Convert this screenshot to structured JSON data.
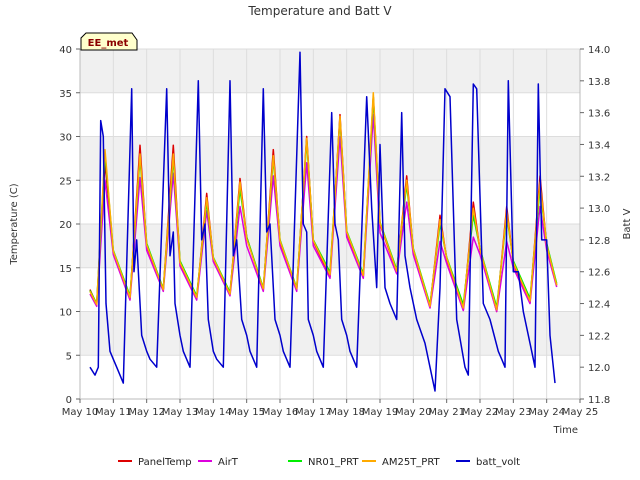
{
  "chart_data": {
    "type": "line",
    "title": "Temperature and Batt V",
    "xlabel": "Time",
    "ylabel": "Temperature (C)",
    "y2label": "Batt V",
    "badge": "EE_met",
    "xlim": [
      10,
      25
    ],
    "ylim": [
      0,
      40
    ],
    "y2lim": [
      11.8,
      14.0
    ],
    "x_ticks": [
      10,
      11,
      12,
      13,
      14,
      15,
      16,
      17,
      18,
      19,
      20,
      21,
      22,
      23,
      24,
      25
    ],
    "x_tick_labels": [
      "May 10",
      "May 11",
      "May 12",
      "May 13",
      "May 14",
      "May 15",
      "May 16",
      "May 17",
      "May 18",
      "May 19",
      "May 20",
      "May 21",
      "May 22",
      "May 23",
      "May 24",
      "May 25"
    ],
    "y_ticks": [
      0,
      5,
      10,
      15,
      20,
      25,
      30,
      35,
      40
    ],
    "y2_ticks": [
      11.8,
      12.0,
      12.2,
      12.4,
      12.6,
      12.8,
      13.0,
      13.2,
      13.4,
      13.6,
      13.8,
      14.0
    ],
    "y2_tick_labels": [
      "11.8",
      "12.0",
      "12.2",
      "12.4",
      "12.6",
      "12.8",
      "13.0",
      "13.2",
      "13.4",
      "13.6",
      "13.8",
      "14.0"
    ],
    "grid": true,
    "legend_position": "bottom",
    "temp_x": [
      10.3,
      10.5,
      10.75,
      11.0,
      11.5,
      11.8,
      12.0,
      12.5,
      12.8,
      13.0,
      13.5,
      13.8,
      14.0,
      14.5,
      14.8,
      15.0,
      15.5,
      15.8,
      16.0,
      16.5,
      16.8,
      17.0,
      17.5,
      17.8,
      18.0,
      18.5,
      18.8,
      19.0,
      19.5,
      19.8,
      20.0,
      20.5,
      20.8,
      21.0,
      21.5,
      21.8,
      22.0,
      22.5,
      22.8,
      23.0,
      23.5,
      23.8,
      24.0,
      24.3
    ],
    "series": [
      {
        "name": "PanelTemp",
        "color": "#dd0000",
        "axis": "left",
        "values": [
          12.5,
          10.8,
          27.0,
          16.8,
          11.5,
          29.0,
          17.5,
          12.5,
          29.0,
          15.5,
          11.5,
          23.5,
          16.0,
          12.0,
          25.2,
          18.5,
          12.5,
          28.5,
          18.0,
          12.5,
          30.0,
          18.0,
          14.0,
          32.5,
          19.0,
          14.0,
          34.5,
          20.0,
          14.5,
          25.5,
          17.0,
          10.5,
          21.0,
          16.0,
          10.2,
          22.5,
          17.0,
          10.0,
          22.0,
          15.5,
          11.0,
          25.5,
          17.5,
          13.0
        ]
      },
      {
        "name": "AirT",
        "color": "#dd00dd",
        "axis": "left",
        "values": [
          12.0,
          10.6,
          25.0,
          16.5,
          11.3,
          25.3,
          17.0,
          12.3,
          25.8,
          15.2,
          11.3,
          21.5,
          15.7,
          11.8,
          22.0,
          17.5,
          12.3,
          25.5,
          17.5,
          12.3,
          27.0,
          17.5,
          13.8,
          30.0,
          18.5,
          13.8,
          32.5,
          19.0,
          14.3,
          22.5,
          16.5,
          10.4,
          18.0,
          15.5,
          10.1,
          18.5,
          16.5,
          10.0,
          18.0,
          15.0,
          10.9,
          22.0,
          17.0,
          12.8
        ]
      },
      {
        "name": "NR01_PRT",
        "color": "#00ee00",
        "axis": "left",
        "values": [
          12.4,
          10.9,
          28.0,
          17.0,
          11.8,
          27.5,
          17.8,
          12.6,
          27.5,
          15.8,
          11.8,
          22.5,
          16.2,
          12.2,
          24.0,
          18.5,
          12.7,
          27.5,
          18.2,
          12.7,
          29.5,
          18.2,
          14.5,
          32.0,
          19.2,
          14.3,
          34.5,
          20.2,
          14.8,
          24.5,
          17.2,
          10.8,
          20.0,
          16.2,
          10.8,
          21.0,
          17.2,
          10.5,
          21.0,
          15.8,
          11.5,
          24.0,
          17.8,
          13.2
        ]
      },
      {
        "name": "AM25T_PRT",
        "color": "#ffaa00",
        "axis": "left",
        "values": [
          12.3,
          10.8,
          28.5,
          16.9,
          11.6,
          28.0,
          17.6,
          12.5,
          28.0,
          15.6,
          11.6,
          23.0,
          16.1,
          12.0,
          24.8,
          18.3,
          12.6,
          27.8,
          18.1,
          12.6,
          29.8,
          18.1,
          14.2,
          32.3,
          19.1,
          14.1,
          35.0,
          20.1,
          14.6,
          25.0,
          17.1,
          10.6,
          20.5,
          16.1,
          10.4,
          21.8,
          17.1,
          10.2,
          21.5,
          15.6,
          11.2,
          24.8,
          17.6,
          13.0
        ]
      },
      {
        "name": "batt_volt",
        "color": "#0000cc",
        "axis": "right",
        "x": [
          10.3,
          10.45,
          10.55,
          10.62,
          10.7,
          10.78,
          10.9,
          11.0,
          11.1,
          11.3,
          11.55,
          11.62,
          11.7,
          11.85,
          12.0,
          12.1,
          12.3,
          12.6,
          12.7,
          12.8,
          12.85,
          13.0,
          13.1,
          13.3,
          13.55,
          13.65,
          13.75,
          13.85,
          14.0,
          14.1,
          14.3,
          14.5,
          14.6,
          14.7,
          14.85,
          15.0,
          15.1,
          15.3,
          15.5,
          15.6,
          15.7,
          15.85,
          16.0,
          16.1,
          16.3,
          16.6,
          16.7,
          16.8,
          16.85,
          17.0,
          17.1,
          17.3,
          17.55,
          17.65,
          17.75,
          17.85,
          18.0,
          18.1,
          18.3,
          18.6,
          18.75,
          18.9,
          19.0,
          19.15,
          19.3,
          19.5,
          19.65,
          19.75,
          19.9,
          20.1,
          20.35,
          20.5,
          20.65,
          20.8,
          20.95,
          21.1,
          21.3,
          21.55,
          21.65,
          21.8,
          21.9,
          22.1,
          22.3,
          22.55,
          22.65,
          22.75,
          22.85,
          23.0,
          23.15,
          23.3,
          23.55,
          23.65,
          23.75,
          23.85,
          24.0,
          24.1,
          24.25
        ],
        "values": [
          12.0,
          11.95,
          12.0,
          13.55,
          13.45,
          12.4,
          12.1,
          12.05,
          12.0,
          11.9,
          13.75,
          12.6,
          12.8,
          12.2,
          12.1,
          12.05,
          12.0,
          13.75,
          12.7,
          12.85,
          12.4,
          12.2,
          12.1,
          12.0,
          13.8,
          12.8,
          12.9,
          12.3,
          12.1,
          12.05,
          12.0,
          13.8,
          12.7,
          12.8,
          12.3,
          12.2,
          12.1,
          12.0,
          13.75,
          12.85,
          12.9,
          12.3,
          12.2,
          12.1,
          12.0,
          13.98,
          12.9,
          12.85,
          12.3,
          12.2,
          12.1,
          12.0,
          13.6,
          12.9,
          12.8,
          12.3,
          12.2,
          12.1,
          12.0,
          13.7,
          13.0,
          12.5,
          13.4,
          12.5,
          12.4,
          12.3,
          13.6,
          12.7,
          12.5,
          12.3,
          12.15,
          12.0,
          11.85,
          12.5,
          13.75,
          13.7,
          12.3,
          12.0,
          11.95,
          13.78,
          13.75,
          12.4,
          12.3,
          12.1,
          12.05,
          12.0,
          13.8,
          12.6,
          12.6,
          12.35,
          12.1,
          12.0,
          13.78,
          12.8,
          12.8,
          12.2,
          11.9
        ]
      }
    ]
  }
}
